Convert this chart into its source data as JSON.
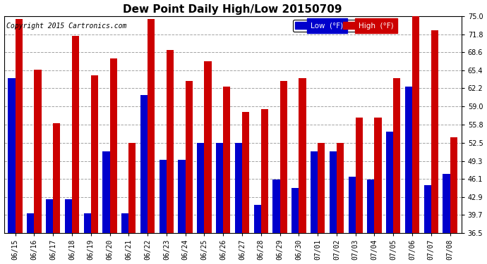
{
  "title": "Dew Point Daily High/Low 20150709",
  "copyright": "Copyright 2015 Cartronics.com",
  "legend_low": "Low  (°F)",
  "legend_high": "High  (°F)",
  "dates": [
    "06/15",
    "06/16",
    "06/17",
    "06/18",
    "06/19",
    "06/20",
    "06/21",
    "06/22",
    "06/23",
    "06/24",
    "06/25",
    "06/26",
    "06/27",
    "06/28",
    "06/29",
    "06/30",
    "07/01",
    "07/02",
    "07/03",
    "07/04",
    "07/05",
    "07/06",
    "07/07",
    "07/08"
  ],
  "low": [
    64.0,
    40.0,
    42.5,
    42.5,
    40.0,
    51.0,
    40.0,
    61.0,
    49.5,
    49.5,
    52.5,
    52.5,
    52.5,
    41.5,
    46.0,
    44.5,
    51.0,
    51.0,
    46.5,
    46.0,
    54.5,
    62.5,
    45.0,
    47.0
  ],
  "high": [
    74.5,
    65.5,
    56.0,
    71.5,
    64.5,
    67.5,
    52.5,
    74.5,
    69.0,
    63.5,
    67.0,
    62.5,
    58.0,
    58.5,
    63.5,
    64.0,
    52.5,
    52.5,
    57.0,
    57.0,
    64.0,
    75.5,
    72.5,
    53.5
  ],
  "low_color": "#0000cc",
  "high_color": "#cc0000",
  "bg_color": "#ffffff",
  "grid_color": "#999999",
  "ymin": 36.5,
  "ymax": 75.0,
  "yticks": [
    36.5,
    39.7,
    42.9,
    46.1,
    49.3,
    52.5,
    55.8,
    59.0,
    62.2,
    65.4,
    68.6,
    71.8,
    75.0
  ],
  "title_fontsize": 11,
  "tick_fontsize": 7,
  "copyright_fontsize": 7,
  "legend_fontsize": 7.5,
  "bar_width": 0.38
}
